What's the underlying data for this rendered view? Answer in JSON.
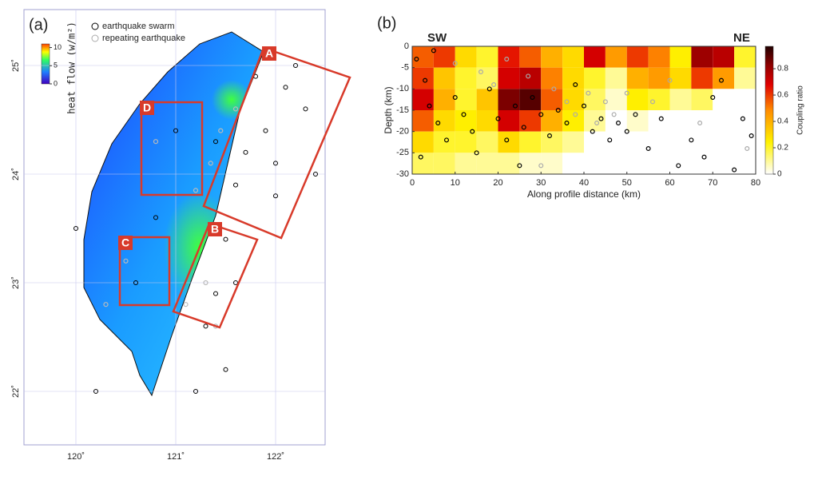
{
  "panel_a": {
    "label": "(a)",
    "legend": [
      "earthquake swarm",
      "repeating earthquake"
    ],
    "colorbar": {
      "label": "heat flow (w/m²)",
      "lim": [
        0,
        11
      ],
      "ticks": [
        0,
        5,
        10
      ]
    },
    "xlim": [
      119.5,
      122.5
    ],
    "ylim": [
      21.5,
      25.5
    ],
    "xticks": [
      {
        "value": 120,
        "label": "120˚"
      },
      {
        "value": 121,
        "label": "121˚"
      },
      {
        "value": 122,
        "label": "122˚"
      }
    ],
    "yticks": [
      {
        "value": 22,
        "label": "22˚"
      },
      {
        "value": 23,
        "label": "23˚"
      },
      {
        "value": 24,
        "label": "24˚"
      },
      {
        "value": 25,
        "label": "25˚"
      }
    ],
    "boxes": [
      "A",
      "B",
      "C",
      "D"
    ],
    "swarm": [
      [
        122.1,
        24.8
      ],
      [
        122.3,
        24.6
      ],
      [
        121.9,
        24.4
      ],
      [
        122.0,
        24.1
      ],
      [
        121.7,
        24.2
      ],
      [
        121.6,
        23.9
      ],
      [
        122.4,
        24.0
      ],
      [
        121.5,
        23.4
      ],
      [
        121.6,
        23.0
      ],
      [
        121.4,
        22.9
      ],
      [
        121.3,
        22.6
      ],
      [
        121.5,
        22.2
      ],
      [
        121.2,
        22.0
      ],
      [
        120.2,
        22.0
      ],
      [
        120.8,
        23.6
      ],
      [
        121.0,
        24.4
      ],
      [
        121.4,
        24.3
      ],
      [
        122.2,
        25.0
      ],
      [
        121.8,
        24.9
      ],
      [
        122.0,
        23.8
      ],
      [
        120.6,
        23.0
      ],
      [
        120.0,
        23.5
      ]
    ],
    "repeating": [
      [
        121.35,
        24.1
      ],
      [
        121.2,
        23.85
      ],
      [
        121.45,
        24.4
      ],
      [
        120.8,
        24.3
      ],
      [
        121.3,
        23.0
      ],
      [
        121.1,
        22.8
      ],
      [
        121.4,
        22.6
      ],
      [
        120.5,
        23.2
      ],
      [
        120.3,
        22.8
      ],
      [
        121.6,
        24.6
      ]
    ]
  },
  "panel_b": {
    "label": "(b)",
    "left": "SW",
    "right": "NE",
    "xlabel": "Along profile distance (km)",
    "ylabel": "Depth (km)",
    "xlim": [
      0,
      80
    ],
    "ylim": [
      -30,
      0
    ],
    "xticks": [
      0,
      10,
      20,
      30,
      40,
      50,
      60,
      70,
      80
    ],
    "yticks": [
      -30,
      -25,
      -20,
      -15,
      -10,
      -5,
      0
    ],
    "colorbar": {
      "label": "Coupling ratio",
      "lim": [
        0,
        0.97
      ],
      "ticks": [
        0,
        0.2,
        0.4,
        0.6,
        0.8
      ]
    },
    "cell_size": [
      5,
      5
    ],
    "coupling": [
      [
        0.55,
        0.6,
        0.3,
        0.2,
        0.65,
        0.55,
        0.4,
        0.3,
        0.7,
        0.45,
        0.6,
        0.5,
        0.25,
        0.8,
        0.75,
        0.2
      ],
      [
        0.6,
        0.35,
        0.2,
        0.15,
        0.7,
        0.75,
        0.5,
        0.3,
        0.2,
        0.1,
        0.4,
        0.45,
        0.3,
        0.6,
        0.45,
        0.1
      ],
      [
        0.7,
        0.4,
        0.2,
        0.35,
        0.85,
        0.9,
        0.55,
        0.3,
        0.15,
        0.05,
        0.25,
        0.2,
        0.1,
        0.15,
        0,
        0
      ],
      [
        0.55,
        0.3,
        0.25,
        0.3,
        0.7,
        0.6,
        0.4,
        0.25,
        0.1,
        0,
        0.05,
        0,
        0,
        0,
        0,
        0
      ],
      [
        0.3,
        0.2,
        0.2,
        0.15,
        0.3,
        0.2,
        0.15,
        0.1,
        0,
        0,
        0,
        0,
        0,
        0,
        0,
        0
      ],
      [
        0.15,
        0.15,
        0.1,
        0.1,
        0.1,
        0.05,
        0.05,
        0,
        0,
        0,
        0,
        0,
        0,
        0,
        0,
        0
      ]
    ],
    "swarm": [
      [
        1,
        -3
      ],
      [
        3,
        -8
      ],
      [
        4,
        -14
      ],
      [
        6,
        -18
      ],
      [
        8,
        -22
      ],
      [
        2,
        -26
      ],
      [
        10,
        -12
      ],
      [
        12,
        -16
      ],
      [
        14,
        -20
      ],
      [
        15,
        -25
      ],
      [
        18,
        -10
      ],
      [
        20,
        -17
      ],
      [
        22,
        -22
      ],
      [
        24,
        -14
      ],
      [
        26,
        -19
      ],
      [
        28,
        -12
      ],
      [
        30,
        -16
      ],
      [
        32,
        -21
      ],
      [
        34,
        -15
      ],
      [
        36,
        -18
      ],
      [
        38,
        -9
      ],
      [
        40,
        -14
      ],
      [
        42,
        -20
      ],
      [
        44,
        -17
      ],
      [
        46,
        -22
      ],
      [
        48,
        -18
      ],
      [
        50,
        -20
      ],
      [
        52,
        -16
      ],
      [
        55,
        -24
      ],
      [
        58,
        -17
      ],
      [
        62,
        -28
      ],
      [
        65,
        -22
      ],
      [
        68,
        -26
      ],
      [
        70,
        -12
      ],
      [
        72,
        -8
      ],
      [
        75,
        -29
      ],
      [
        77,
        -17
      ],
      [
        79,
        -21
      ],
      [
        25,
        -28
      ],
      [
        5,
        -1
      ]
    ],
    "repeating": [
      [
        16,
        -6
      ],
      [
        19,
        -9
      ],
      [
        22,
        -3
      ],
      [
        27,
        -7
      ],
      [
        33,
        -10
      ],
      [
        36,
        -13
      ],
      [
        38,
        -16
      ],
      [
        41,
        -11
      ],
      [
        43,
        -18
      ],
      [
        45,
        -13
      ],
      [
        47,
        -16
      ],
      [
        50,
        -11
      ],
      [
        56,
        -13
      ],
      [
        60,
        -8
      ],
      [
        67,
        -18
      ],
      [
        78,
        -24
      ],
      [
        10,
        -4
      ],
      [
        30,
        -28
      ]
    ]
  }
}
